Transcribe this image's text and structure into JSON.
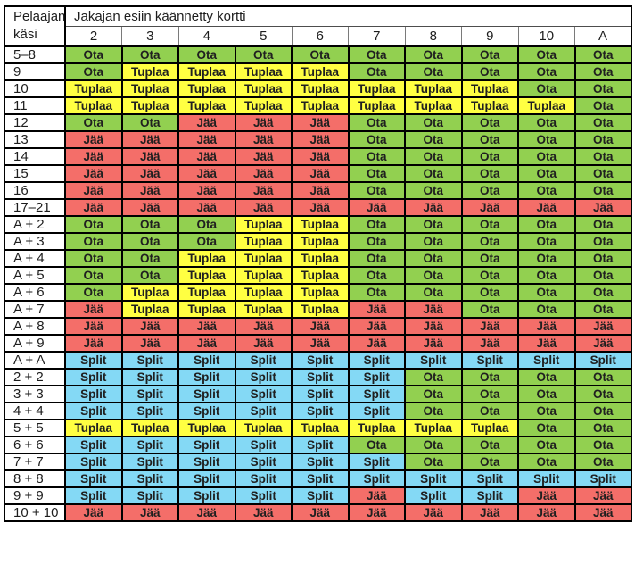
{
  "header": {
    "player_hand_label": "Pelaajan käsi",
    "dealer_card_label": "Jakajan esiin käännetty kortti",
    "columns": [
      "2",
      "3",
      "4",
      "5",
      "6",
      "7",
      "8",
      "9",
      "10",
      "A"
    ]
  },
  "actions": {
    "ota": {
      "label": "Ota",
      "color": "#92D050",
      "meaning": "hit"
    },
    "tuplaa": {
      "label": "Tuplaa",
      "color": "#FFFF42",
      "meaning": "double"
    },
    "jaa": {
      "label": "Jää",
      "color": "#F46E69",
      "meaning": "stand"
    },
    "split": {
      "label": "Split",
      "color": "#84D9F5",
      "meaning": "split"
    }
  },
  "rows": [
    {
      "label": "5–8",
      "cells": [
        "ota",
        "ota",
        "ota",
        "ota",
        "ota",
        "ota",
        "ota",
        "ota",
        "ota",
        "ota"
      ]
    },
    {
      "label": "9",
      "cells": [
        "ota",
        "tuplaa",
        "tuplaa",
        "tuplaa",
        "tuplaa",
        "ota",
        "ota",
        "ota",
        "ota",
        "ota"
      ]
    },
    {
      "label": "10",
      "cells": [
        "tuplaa",
        "tuplaa",
        "tuplaa",
        "tuplaa",
        "tuplaa",
        "tuplaa",
        "tuplaa",
        "tuplaa",
        "ota",
        "ota"
      ]
    },
    {
      "label": "11",
      "cells": [
        "tuplaa",
        "tuplaa",
        "tuplaa",
        "tuplaa",
        "tuplaa",
        "tuplaa",
        "tuplaa",
        "tuplaa",
        "tuplaa",
        "ota"
      ]
    },
    {
      "label": "12",
      "cells": [
        "ota",
        "ota",
        "jaa",
        "jaa",
        "jaa",
        "ota",
        "ota",
        "ota",
        "ota",
        "ota"
      ]
    },
    {
      "label": "13",
      "cells": [
        "jaa",
        "jaa",
        "jaa",
        "jaa",
        "jaa",
        "ota",
        "ota",
        "ota",
        "ota",
        "ota"
      ]
    },
    {
      "label": "14",
      "cells": [
        "jaa",
        "jaa",
        "jaa",
        "jaa",
        "jaa",
        "ota",
        "ota",
        "ota",
        "ota",
        "ota"
      ]
    },
    {
      "label": "15",
      "cells": [
        "jaa",
        "jaa",
        "jaa",
        "jaa",
        "jaa",
        "ota",
        "ota",
        "ota",
        "ota",
        "ota"
      ]
    },
    {
      "label": "16",
      "cells": [
        "jaa",
        "jaa",
        "jaa",
        "jaa",
        "jaa",
        "ota",
        "ota",
        "ota",
        "ota",
        "ota"
      ]
    },
    {
      "label": "17–21",
      "cells": [
        "jaa",
        "jaa",
        "jaa",
        "jaa",
        "jaa",
        "jaa",
        "jaa",
        "jaa",
        "jaa",
        "jaa"
      ]
    },
    {
      "label": "A + 2",
      "cells": [
        "ota",
        "ota",
        "ota",
        "tuplaa",
        "tuplaa",
        "ota",
        "ota",
        "ota",
        "ota",
        "ota"
      ]
    },
    {
      "label": "A + 3",
      "cells": [
        "ota",
        "ota",
        "ota",
        "tuplaa",
        "tuplaa",
        "ota",
        "ota",
        "ota",
        "ota",
        "ota"
      ]
    },
    {
      "label": "A + 4",
      "cells": [
        "ota",
        "ota",
        "tuplaa",
        "tuplaa",
        "tuplaa",
        "ota",
        "ota",
        "ota",
        "ota",
        "ota"
      ]
    },
    {
      "label": "A + 5",
      "cells": [
        "ota",
        "ota",
        "tuplaa",
        "tuplaa",
        "tuplaa",
        "ota",
        "ota",
        "ota",
        "ota",
        "ota"
      ]
    },
    {
      "label": "A + 6",
      "cells": [
        "ota",
        "tuplaa",
        "tuplaa",
        "tuplaa",
        "tuplaa",
        "ota",
        "ota",
        "ota",
        "ota",
        "ota"
      ]
    },
    {
      "label": "A + 7",
      "cells": [
        "jaa",
        "tuplaa",
        "tuplaa",
        "tuplaa",
        "tuplaa",
        "jaa",
        "jaa",
        "ota",
        "ota",
        "ota"
      ]
    },
    {
      "label": "A + 8",
      "cells": [
        "jaa",
        "jaa",
        "jaa",
        "jaa",
        "jaa",
        "jaa",
        "jaa",
        "jaa",
        "jaa",
        "jaa"
      ]
    },
    {
      "label": "A + 9",
      "cells": [
        "jaa",
        "jaa",
        "jaa",
        "jaa",
        "jaa",
        "jaa",
        "jaa",
        "jaa",
        "jaa",
        "jaa"
      ]
    },
    {
      "label": "A + A",
      "cells": [
        "split",
        "split",
        "split",
        "split",
        "split",
        "split",
        "split",
        "split",
        "split",
        "split"
      ]
    },
    {
      "label": "2 + 2",
      "cells": [
        "split",
        "split",
        "split",
        "split",
        "split",
        "split",
        "ota",
        "ota",
        "ota",
        "ota"
      ]
    },
    {
      "label": "3 + 3",
      "cells": [
        "split",
        "split",
        "split",
        "split",
        "split",
        "split",
        "ota",
        "ota",
        "ota",
        "ota"
      ]
    },
    {
      "label": "4 + 4",
      "cells": [
        "split",
        "split",
        "split",
        "split",
        "split",
        "split",
        "ota",
        "ota",
        "ota",
        "ota"
      ]
    },
    {
      "label": "5 + 5",
      "cells": [
        "tuplaa",
        "tuplaa",
        "tuplaa",
        "tuplaa",
        "tuplaa",
        "tuplaa",
        "tuplaa",
        "tuplaa",
        "ota",
        "ota"
      ]
    },
    {
      "label": "6 + 6",
      "cells": [
        "split",
        "split",
        "split",
        "split",
        "split",
        "ota",
        "ota",
        "ota",
        "ota",
        "ota"
      ]
    },
    {
      "label": "7 + 7",
      "cells": [
        "split",
        "split",
        "split",
        "split",
        "split",
        "split",
        "ota",
        "ota",
        "ota",
        "ota"
      ]
    },
    {
      "label": "8 + 8",
      "cells": [
        "split",
        "split",
        "split",
        "split",
        "split",
        "split",
        "split",
        "split",
        "split",
        "split"
      ]
    },
    {
      "label": "9 + 9",
      "cells": [
        "split",
        "split",
        "split",
        "split",
        "split",
        "jaa",
        "split",
        "split",
        "jaa",
        "jaa"
      ]
    },
    {
      "label": "10 + 10",
      "cells": [
        "jaa",
        "jaa",
        "jaa",
        "jaa",
        "jaa",
        "jaa",
        "jaa",
        "jaa",
        "jaa",
        "jaa"
      ]
    }
  ]
}
